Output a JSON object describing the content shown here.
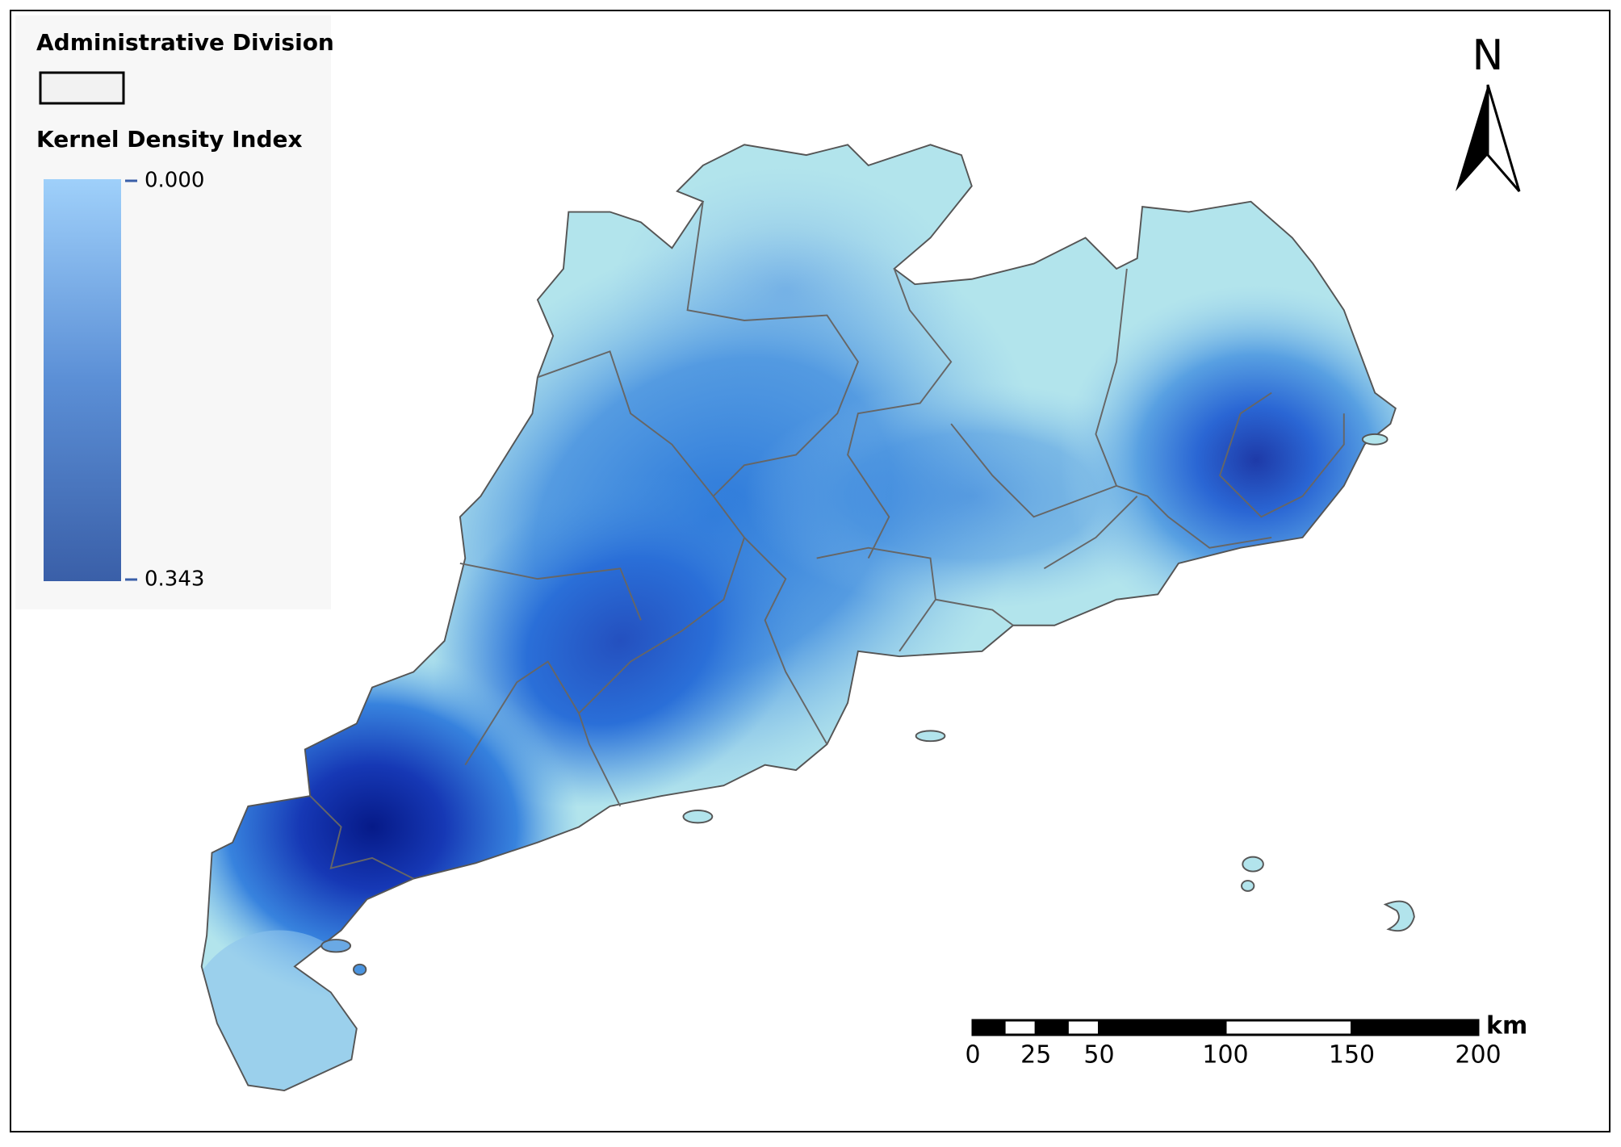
{
  "legend": {
    "division_title": "Administrative Division",
    "density_title": "Kernel Density Index",
    "density_min": "0.000",
    "density_max": "0.343"
  },
  "north_arrow": {
    "label": "N"
  },
  "scale_bar": {
    "ticks": [
      0,
      25,
      50,
      100,
      150,
      200
    ],
    "unit": "km"
  }
}
